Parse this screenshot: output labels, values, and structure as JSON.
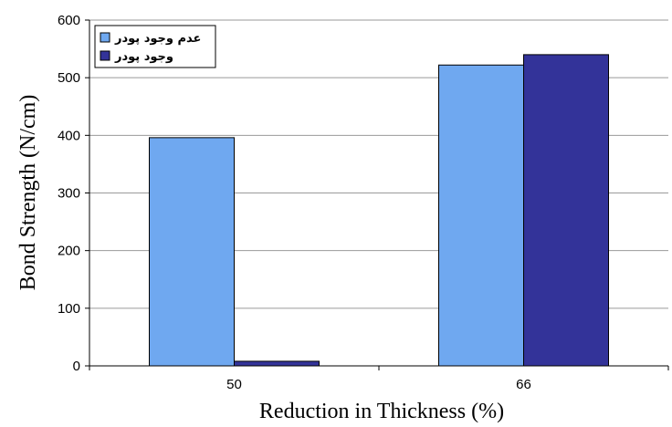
{
  "chart_data": {
    "type": "bar",
    "categories": [
      "50",
      "66"
    ],
    "series": [
      {
        "name": "عدم وجود پودر",
        "values": [
          396,
          522
        ],
        "color": "#6fa8f0"
      },
      {
        "name": "وجود پودر",
        "values": [
          8,
          540
        ],
        "color": "#333399"
      }
    ],
    "xlabel": "Reduction in Thickness (%)",
    "ylabel": "Bond Strength (N/cm)",
    "ylim": [
      0,
      600
    ],
    "yticks": [
      "0",
      "100",
      "200",
      "300",
      "400",
      "500",
      "600"
    ],
    "grid": true,
    "legend_position": "top-left"
  }
}
